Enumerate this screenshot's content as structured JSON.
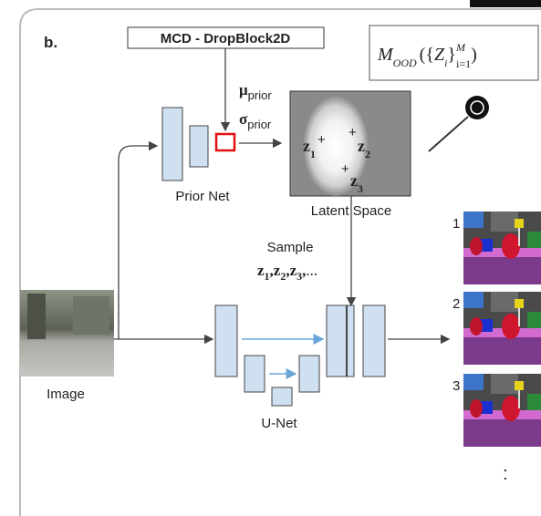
{
  "panel_label": "b.",
  "dropblock_label": "MCD - DropBlock2D",
  "formula": {
    "operator": "M",
    "operator_subscript": "OOD",
    "open": "(",
    "set_open": "{",
    "variable": "Z",
    "variable_subscript": "i",
    "set_close": "}",
    "upper": "M",
    "lower": "i=1",
    "close": ")"
  },
  "prior_net": {
    "label": "Prior Net",
    "mu": {
      "symbol": "μ",
      "subscript": "prior"
    },
    "sigma": {
      "symbol": "σ",
      "subscript": "prior"
    }
  },
  "latent_space": {
    "label": "Latent Space",
    "points": [
      {
        "symbol": "z",
        "subscript": "1",
        "marker": "+"
      },
      {
        "symbol": "z",
        "subscript": "2",
        "marker": "+"
      },
      {
        "symbol": "z",
        "subscript": "3",
        "marker": "+"
      }
    ]
  },
  "sample": {
    "label": "Sample",
    "sequence": [
      {
        "symbol": "z",
        "subscript": "1"
      },
      {
        "symbol": "z",
        "subscript": "2"
      },
      {
        "symbol": "z",
        "subscript": "3"
      }
    ],
    "separator": ",",
    "ellipsis": "..."
  },
  "input_label": "Image",
  "unet_label": "U-Net",
  "outputs": [
    "1",
    "2",
    "3"
  ],
  "more": ":"
}
